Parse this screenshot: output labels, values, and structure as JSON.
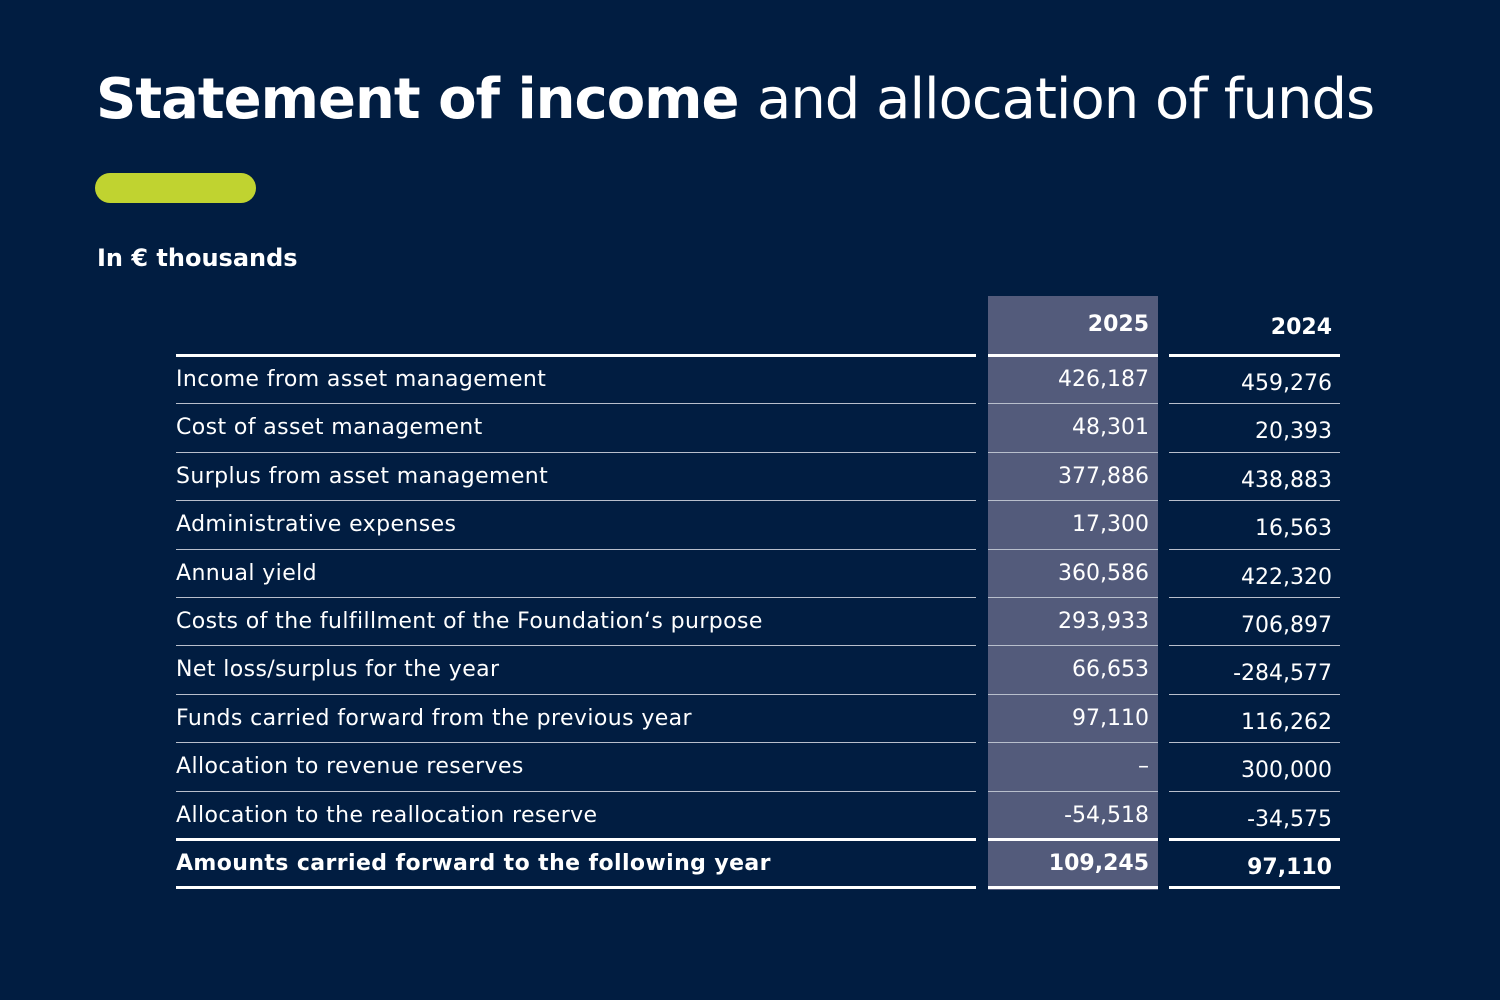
{
  "title": {
    "bold_part": "Statement of income",
    "light_part": "and allocation of funds"
  },
  "unit_label": "In € thousands",
  "colors": {
    "background": "#011d41",
    "accent": "#c0d330",
    "highlight_column": "#535b7b",
    "text": "#ffffff"
  },
  "table": {
    "columns": [
      "2025",
      "2024"
    ],
    "highlighted_column": "2025",
    "rows": [
      {
        "label": "Income from asset management",
        "v2025": "426,187",
        "v2024": "459,276"
      },
      {
        "label": "Cost of asset management",
        "v2025": "48,301",
        "v2024": "20,393"
      },
      {
        "label": "Surplus from asset management",
        "v2025": "377,886",
        "v2024": "438,883"
      },
      {
        "label": "Administrative expenses",
        "v2025": "17,300",
        "v2024": "16,563"
      },
      {
        "label": "Annual yield",
        "v2025": "360,586",
        "v2024": "422,320"
      },
      {
        "label": "Costs of the fulfillment of the Foundation‘s purpose",
        "v2025": "293,933",
        "v2024": "706,897"
      },
      {
        "label": "Net loss/surplus for the year",
        "v2025": "66,653",
        "v2024": "-284,577"
      },
      {
        "label": "Funds carried forward from the previous year",
        "v2025": "97,110",
        "v2024": "116,262"
      },
      {
        "label": "Allocation to revenue reserves",
        "v2025": "–",
        "v2024": "300,000"
      },
      {
        "label": "Allocation to the reallocation reserve",
        "v2025": "-54,518",
        "v2024": "-34,575"
      },
      {
        "label": "Amounts carried forward to the following year",
        "v2025": "109,245",
        "v2024": "97,110",
        "total": true
      }
    ]
  }
}
